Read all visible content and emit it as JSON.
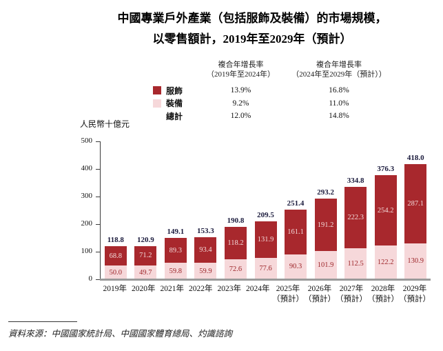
{
  "title": {
    "line1": "中國專業戶外產業（包括服飾及裝備）的市場規模，",
    "line2": "以零售額計，2019年至2029年（預計）"
  },
  "cagr_table": {
    "col1_header": [
      "複合年增長率",
      "（2019年至2024年）"
    ],
    "col2_header": [
      "複合年增長率",
      "（2024年至2029年（預計））"
    ],
    "rows": [
      {
        "label": "服飾",
        "swatch_color": "#A8282D",
        "cagr_2019_2024": "13.9%",
        "cagr_2024_2029": "16.8%"
      },
      {
        "label": "裝備",
        "swatch_color": "#F6D8DA",
        "cagr_2019_2024": "9.2%",
        "cagr_2024_2029": "11.0%"
      },
      {
        "label": "總計",
        "swatch_color": "",
        "cagr_2019_2024": "12.0%",
        "cagr_2024_2029": "14.8%"
      }
    ]
  },
  "chart_data": {
    "type": "bar",
    "stacked": true,
    "unit_label": "人民幣十億元",
    "ylim": [
      0,
      500
    ],
    "yticks": [
      0,
      100,
      200,
      300,
      400,
      500
    ],
    "grid": false,
    "categories": [
      {
        "year": "2019年",
        "note": ""
      },
      {
        "year": "2020年",
        "note": ""
      },
      {
        "year": "2021年",
        "note": ""
      },
      {
        "year": "2022年",
        "note": ""
      },
      {
        "year": "2023年",
        "note": ""
      },
      {
        "year": "2024年",
        "note": ""
      },
      {
        "year": "2025年",
        "note": "（預計）"
      },
      {
        "year": "2026年",
        "note": "（預計）"
      },
      {
        "year": "2027年",
        "note": "（預計）"
      },
      {
        "year": "2028年",
        "note": "（預計）"
      },
      {
        "year": "2029年",
        "note": "（預計）"
      }
    ],
    "series": [
      {
        "name": "服飾",
        "color": "#A8282D",
        "label_color": "#F3DCDC",
        "values": [
          68.8,
          71.2,
          89.3,
          93.4,
          118.2,
          131.9,
          161.1,
          191.2,
          222.3,
          254.2,
          287.1
        ]
      },
      {
        "name": "裝備",
        "color": "#F6D8DA",
        "label_color": "#9C2428",
        "values": [
          50.0,
          49.7,
          59.8,
          59.9,
          72.6,
          77.6,
          90.3,
          101.9,
          112.5,
          122.2,
          130.9
        ]
      }
    ],
    "totals": [
      118.8,
      120.9,
      149.1,
      153.3,
      190.8,
      209.5,
      251.4,
      293.2,
      334.8,
      376.3,
      418.0
    ],
    "total_label_color": "#1a1a3c"
  },
  "source": "資料來源：中國國家統計局、中國國家體育總局、灼識諮詢"
}
